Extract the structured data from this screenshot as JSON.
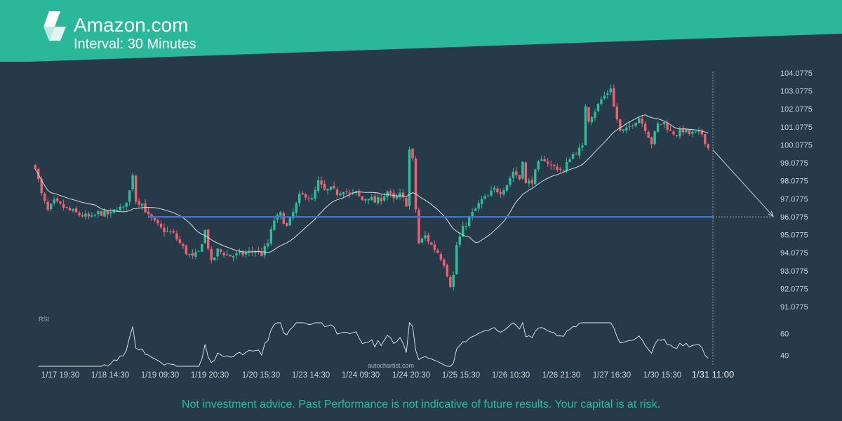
{
  "header": {
    "title": "Amazon.com",
    "subtitle": "Interval: 30 Minutes"
  },
  "colors": {
    "background": "#263a4a",
    "banner": "#2bb79a",
    "bull": "#2cc09a",
    "bear": "#f0616e",
    "level": "#3e74c9",
    "ma": "#d7dde1",
    "rsi": "#e8ecef"
  },
  "chart_data": [
    {
      "type": "candlestick",
      "title": "",
      "xlabel": "",
      "ylabel": "",
      "ylim": [
        90.8,
        104.4
      ],
      "y_ticks": [
        "104.0775",
        "103.0775",
        "102.0775",
        "101.0775",
        "100.0775",
        "99.0775",
        "98.0775",
        "97.0775",
        "96.0775",
        "95.0775",
        "94.0775",
        "93.0775",
        "92.0775",
        "91.0775"
      ],
      "x_ticks": [
        "1/17 19:30",
        "1/18 14:30",
        "1/19 09:30",
        "1/19 20:30",
        "1/20 15:30",
        "1/23 14:30",
        "1/24 09:30",
        "1/24 20:30",
        "1/25 15:30",
        "1/26 10:30",
        "1/26 21:30",
        "1/27 16:30",
        "1/30 15:30",
        "1/31 11:00"
      ],
      "price_path": [
        [
          0,
          98.9
        ],
        [
          2,
          97.3
        ],
        [
          4,
          96.4
        ],
        [
          6,
          96.9
        ],
        [
          10,
          96.5
        ],
        [
          14,
          96.2
        ],
        [
          18,
          96.0
        ],
        [
          20,
          96.3
        ],
        [
          24,
          96.2
        ],
        [
          26,
          96.6
        ],
        [
          28,
          96.5
        ],
        [
          30,
          97.5
        ],
        [
          31,
          98.5
        ],
        [
          32,
          97.0
        ],
        [
          34,
          96.8
        ],
        [
          36,
          96.1
        ],
        [
          40,
          95.4
        ],
        [
          44,
          95.1
        ],
        [
          46,
          94.6
        ],
        [
          48,
          94.1
        ],
        [
          50,
          93.8
        ],
        [
          52,
          94.1
        ],
        [
          54,
          95.3
        ],
        [
          56,
          93.5
        ],
        [
          58,
          94.2
        ],
        [
          62,
          93.9
        ],
        [
          66,
          94.0
        ],
        [
          70,
          94.2
        ],
        [
          72,
          94.0
        ],
        [
          74,
          94.6
        ],
        [
          76,
          95.9
        ],
        [
          78,
          96.2
        ],
        [
          80,
          95.5
        ],
        [
          82,
          96.3
        ],
        [
          84,
          97.2
        ],
        [
          86,
          97.3
        ],
        [
          88,
          97.0
        ],
        [
          90,
          98.0
        ],
        [
          92,
          97.5
        ],
        [
          94,
          97.6
        ],
        [
          96,
          97.4
        ],
        [
          98,
          97.6
        ],
        [
          100,
          97.3
        ],
        [
          102,
          97.4
        ],
        [
          104,
          97.0
        ],
        [
          106,
          97.2
        ],
        [
          108,
          96.9
        ],
        [
          110,
          97.1
        ],
        [
          112,
          97.5
        ],
        [
          114,
          97.0
        ],
        [
          116,
          97.3
        ],
        [
          118,
          96.8
        ],
        [
          119,
          99.8
        ],
        [
          120,
          99.2
        ],
        [
          121,
          96.5
        ],
        [
          122,
          94.6
        ],
        [
          124,
          95.0
        ],
        [
          126,
          94.5
        ],
        [
          128,
          94.1
        ],
        [
          130,
          93.5
        ],
        [
          132,
          92.3
        ],
        [
          133,
          92.8
        ],
        [
          134,
          94.5
        ],
        [
          136,
          95.4
        ],
        [
          138,
          96.0
        ],
        [
          140,
          96.5
        ],
        [
          142,
          97.0
        ],
        [
          144,
          97.2
        ],
        [
          146,
          97.6
        ],
        [
          148,
          97.5
        ],
        [
          150,
          97.9
        ],
        [
          152,
          98.6
        ],
        [
          154,
          98.2
        ],
        [
          155,
          99.3
        ],
        [
          156,
          97.9
        ],
        [
          158,
          98.1
        ],
        [
          160,
          99.0
        ],
        [
          162,
          99.3
        ],
        [
          164,
          98.9
        ],
        [
          166,
          98.8
        ],
        [
          168,
          98.6
        ],
        [
          170,
          99.4
        ],
        [
          172,
          99.7
        ],
        [
          174,
          99.9
        ],
        [
          175,
          102.3
        ],
        [
          176,
          101.5
        ],
        [
          178,
          102.0
        ],
        [
          180,
          102.6
        ],
        [
          182,
          103.0
        ],
        [
          183,
          103.3
        ],
        [
          184,
          102.2
        ],
        [
          186,
          100.8
        ],
        [
          188,
          100.9
        ],
        [
          190,
          101.3
        ],
        [
          192,
          101.6
        ],
        [
          194,
          101.0
        ],
        [
          196,
          100.2
        ],
        [
          198,
          101.2
        ],
        [
          200,
          101.3
        ],
        [
          202,
          100.8
        ],
        [
          204,
          100.7
        ],
        [
          206,
          100.9
        ],
        [
          208,
          100.7
        ],
        [
          212,
          100.7
        ],
        [
          213,
          100.3
        ],
        [
          214,
          99.9
        ]
      ],
      "levels": [
        {
          "price": 96.07,
          "style": "support/resistance line"
        }
      ],
      "forecast_arrow": {
        "from_price": 99.8,
        "to_price": 96.1
      }
    },
    {
      "type": "line",
      "title": "RSI",
      "y_ticks": [
        "60",
        "40"
      ],
      "ylim": [
        30,
        70
      ]
    }
  ],
  "watermark": "autochartist.com",
  "disclaimer": "Not investment advice. Past Performance is not indicative of future results. Your capital is at risk."
}
